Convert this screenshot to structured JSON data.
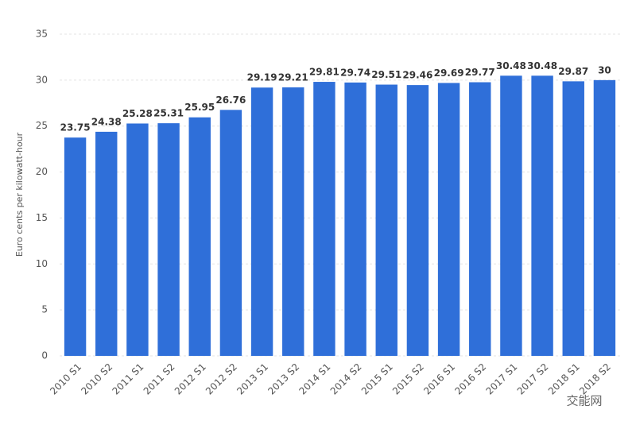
{
  "chart_data": {
    "type": "bar",
    "y_label": "Euro cents per kilowatt-hour",
    "categories": [
      "2010 S1",
      "2010 S2",
      "2011 S1",
      "2011 S2",
      "2012 S1",
      "2012 S2",
      "2013 S1",
      "2013 S2",
      "2014 S1",
      "2014 S2",
      "2015 S1",
      "2015 S2",
      "2016 S1",
      "2016 S2",
      "2017 S1",
      "2017 S2",
      "2018 S1",
      "2018 S2"
    ],
    "values": [
      23.75,
      24.38,
      25.28,
      25.31,
      25.95,
      26.76,
      29.19,
      29.21,
      29.81,
      29.74,
      29.51,
      29.46,
      29.69,
      29.77,
      30.48,
      30.48,
      29.87,
      30
    ],
    "color": "#2f6fd9",
    "ylim": [
      0,
      35
    ],
    "yticks": [
      0,
      5,
      10,
      15,
      20,
      25,
      30,
      35
    ],
    "grid": true,
    "watermark": "交能网"
  }
}
